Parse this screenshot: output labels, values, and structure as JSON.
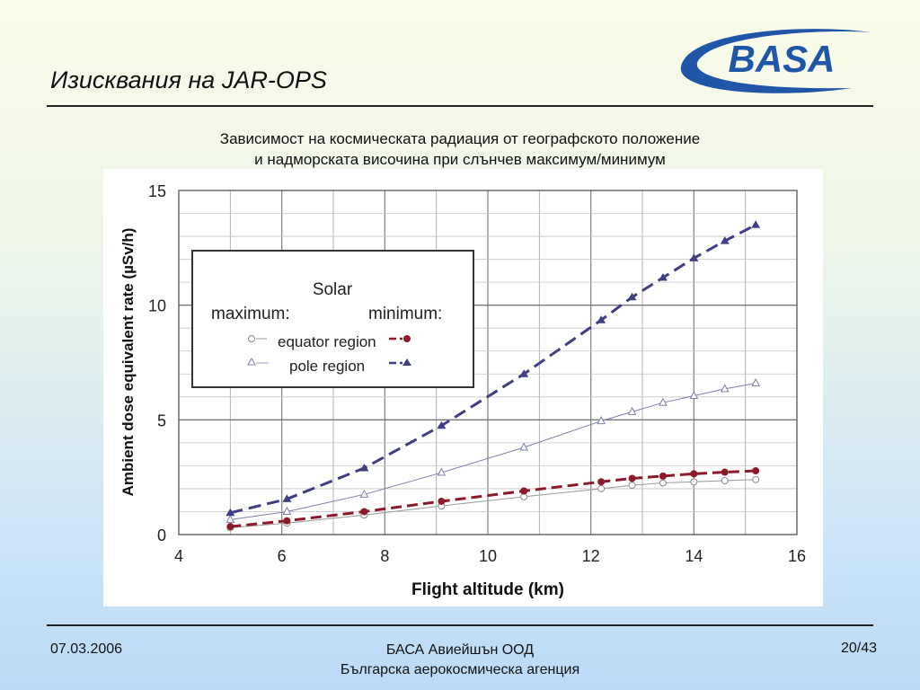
{
  "slide": {
    "title": "Изисквания на JAR-OPS",
    "logo_text": "BASA",
    "caption_line1": "Зависимост на космическата радиация от географското положение",
    "caption_line2": "и надморската височина при слънчев максимум/минимум"
  },
  "footer": {
    "date": "07.03.2006",
    "org_line1": "БАСА Авиейшън ООД",
    "org_line2": "Българска аерокосмическа агенция",
    "page": "20/43"
  },
  "colors": {
    "logo_blue": "#1f56a8",
    "equator_max": "#999999",
    "equator_min": "#8b1a2b",
    "pole_max": "#7c80a8",
    "pole_min": "#3f3f82"
  },
  "chart_data": {
    "type": "line",
    "xlabel": "Flight altitude (km)",
    "ylabel": "Ambient dose equivalent rate (µSv/h)",
    "xlim": [
      4,
      16
    ],
    "ylim": [
      0,
      15
    ],
    "xticks": [
      4,
      6,
      8,
      10,
      12,
      14,
      16
    ],
    "yticks": [
      0,
      5,
      10,
      15
    ],
    "grid": true,
    "legend": {
      "placement": "top-left",
      "title": "Solar",
      "col_max": "maximum:",
      "col_min": "minimum:",
      "row_equator": "equator region",
      "row_pole": "pole region"
    },
    "series": [
      {
        "name": "equator region (solar maximum)",
        "marker": "open-circle",
        "line": "solid-thin",
        "x": [
          5,
          6.1,
          7.6,
          9.1,
          10.7,
          12.2,
          12.8,
          13.4,
          14,
          14.6,
          15.2
        ],
        "y": [
          0.3,
          0.5,
          0.85,
          1.25,
          1.65,
          2.0,
          2.15,
          2.25,
          2.3,
          2.35,
          2.4
        ]
      },
      {
        "name": "equator region (solar minimum)",
        "marker": "filled-circle",
        "line": "dashed-thick",
        "x": [
          5,
          6.1,
          7.6,
          9.1,
          10.7,
          12.2,
          12.8,
          13.4,
          14,
          14.6,
          15.2
        ],
        "y": [
          0.35,
          0.6,
          1.0,
          1.45,
          1.9,
          2.3,
          2.45,
          2.55,
          2.65,
          2.72,
          2.78
        ]
      },
      {
        "name": "pole region (solar maximum)",
        "marker": "open-triangle",
        "line": "solid-thin",
        "x": [
          5,
          6.1,
          7.6,
          9.1,
          10.7,
          12.2,
          12.8,
          13.4,
          14,
          14.6,
          15.2
        ],
        "y": [
          0.65,
          1.0,
          1.75,
          2.7,
          3.8,
          4.95,
          5.35,
          5.75,
          6.05,
          6.35,
          6.6
        ]
      },
      {
        "name": "pole region (solar minimum)",
        "marker": "filled-triangle",
        "line": "dashed-thick",
        "x": [
          5,
          6.1,
          7.6,
          9.1,
          10.7,
          12.2,
          12.8,
          13.4,
          14,
          14.6,
          15.2
        ],
        "y": [
          0.95,
          1.55,
          2.9,
          4.75,
          7.0,
          9.35,
          10.35,
          11.2,
          12.05,
          12.8,
          13.5
        ]
      }
    ]
  }
}
